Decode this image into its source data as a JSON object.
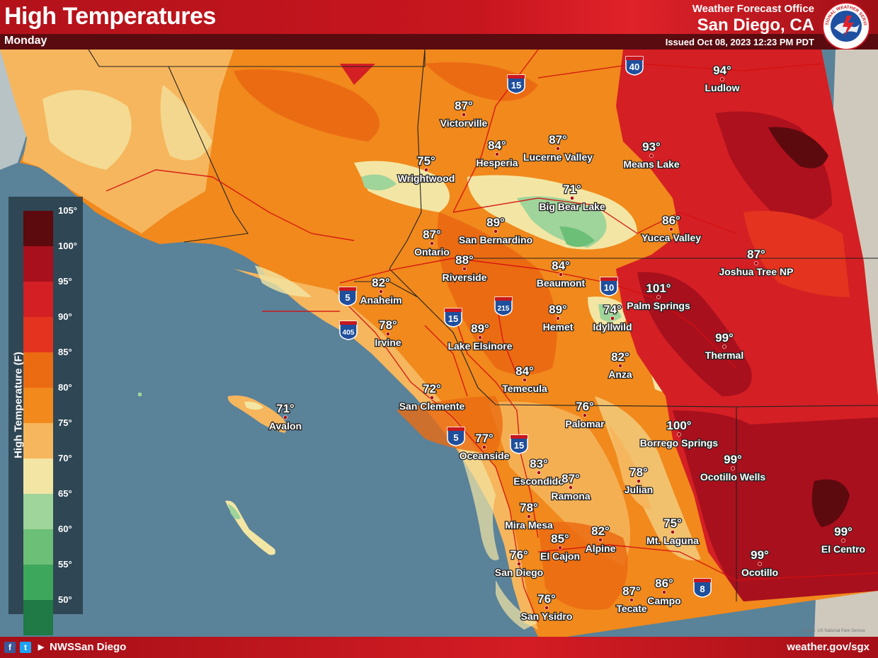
{
  "header": {
    "title": "High Temperatures",
    "day": "Monday",
    "office_line1": "Weather Forecast Office",
    "office_line2": "San Diego, CA",
    "issued": "Issued Oct 08, 2023 12:23 PM PDT",
    "logo_text": "NATIONAL WEATHER SERVICE"
  },
  "legend": {
    "title": "High Temperature (F)",
    "labels": [
      "105°",
      "100°",
      "95°",
      "90°",
      "85°",
      "80°",
      "75°",
      "70°",
      "65°",
      "60°",
      "55°",
      "50°"
    ],
    "colors": [
      "#5c0a0e",
      "#a8101d",
      "#d41f24",
      "#e4331e",
      "#eb6b12",
      "#f1891c",
      "#f6b65d",
      "#f3e6a4",
      "#9fd49a",
      "#6cbf77",
      "#3da75c",
      "#1f7a45"
    ]
  },
  "cities": [
    {
      "name": "Victorville",
      "temp": "87°"
    },
    {
      "name": "Hesperia",
      "temp": "84°"
    },
    {
      "name": "Lucerne Valley",
      "temp": "87°"
    },
    {
      "name": "Means Lake",
      "temp": "93°"
    },
    {
      "name": "Ludlow",
      "temp": "94°"
    },
    {
      "name": "Wrightwood",
      "temp": "75°"
    },
    {
      "name": "Big Bear Lake",
      "temp": "71°"
    },
    {
      "name": "San Bernardino",
      "temp": "89°"
    },
    {
      "name": "Yucca Valley",
      "temp": "86°"
    },
    {
      "name": "Ontario",
      "temp": "87°"
    },
    {
      "name": "Riverside",
      "temp": "88°"
    },
    {
      "name": "Beaumont",
      "temp": "84°"
    },
    {
      "name": "Joshua Tree NP",
      "temp": "87°"
    },
    {
      "name": "Anaheim",
      "temp": "82°"
    },
    {
      "name": "Palm Springs",
      "temp": "101°"
    },
    {
      "name": "Hemet",
      "temp": "89°"
    },
    {
      "name": "Idyllwild",
      "temp": "74°"
    },
    {
      "name": "Irvine",
      "temp": "78°"
    },
    {
      "name": "Lake Elsinore",
      "temp": "89°"
    },
    {
      "name": "Thermal",
      "temp": "99°"
    },
    {
      "name": "Anza",
      "temp": "82°"
    },
    {
      "name": "Temecula",
      "temp": "84°"
    },
    {
      "name": "San Clemente",
      "temp": "72°"
    },
    {
      "name": "Avalon",
      "temp": "71°"
    },
    {
      "name": "Palomar",
      "temp": "76°"
    },
    {
      "name": "Borrego Springs",
      "temp": "100°"
    },
    {
      "name": "Oceanside",
      "temp": "77°"
    },
    {
      "name": "Ocotillo Wells",
      "temp": "99°"
    },
    {
      "name": "Escondido",
      "temp": "83°"
    },
    {
      "name": "Ramona",
      "temp": "87°"
    },
    {
      "name": "Julian",
      "temp": "78°"
    },
    {
      "name": "Mira Mesa",
      "temp": "78°"
    },
    {
      "name": "Mt. Laguna",
      "temp": "75°"
    },
    {
      "name": "El Cajon",
      "temp": "85°"
    },
    {
      "name": "Alpine",
      "temp": "82°"
    },
    {
      "name": "El Centro",
      "temp": "99°"
    },
    {
      "name": "San Diego",
      "temp": "76°"
    },
    {
      "name": "Ocotillo",
      "temp": "99°"
    },
    {
      "name": "Tecate",
      "temp": "87°"
    },
    {
      "name": "Campo",
      "temp": "86°"
    },
    {
      "name": "San Ysidro",
      "temp": "76°"
    }
  ],
  "highways": [
    "15",
    "40",
    "5",
    "405",
    "215",
    "15",
    "10",
    "5",
    "15",
    "8"
  ],
  "footer": {
    "handle": "NWSSan Diego",
    "url": "weather.gov/sgx",
    "source": "Source: US National Park Service"
  }
}
